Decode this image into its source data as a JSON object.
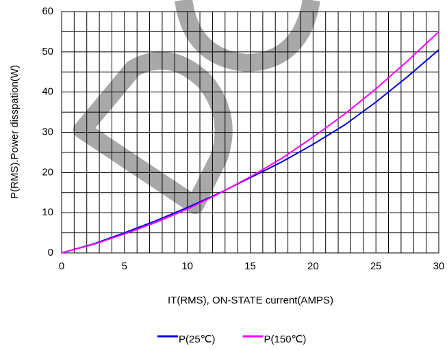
{
  "chart_data": {
    "type": "line",
    "x_label": "IT(RMS), ON-STATE current(AMPS)",
    "y_label": "P(RMS).Power disspation(W)",
    "xlim": [
      0,
      30
    ],
    "ylim": [
      0,
      60
    ],
    "xticks": [
      0,
      5,
      10,
      15,
      20,
      25,
      30
    ],
    "yticks": [
      0,
      10,
      20,
      30,
      40,
      50,
      60
    ],
    "minor_xticks": [
      1,
      2,
      3,
      4,
      6,
      7,
      8,
      9,
      11,
      12,
      13,
      14,
      16,
      17,
      18,
      19,
      21,
      22,
      23,
      24,
      26,
      27,
      28,
      29
    ],
    "minor_yticks": [
      5,
      15,
      25,
      35,
      45,
      55
    ],
    "grid": true,
    "legend": "bottom",
    "x": [
      0,
      2.5,
      5,
      7.5,
      10,
      12.5,
      15,
      17.5,
      20,
      22.5,
      25,
      27.5,
      30
    ],
    "series": [
      {
        "name": "P(25℃)",
        "color": "#0000e0",
        "values": [
          0,
          2.2,
          5,
          8,
          11.3,
          14.8,
          18.7,
          22.6,
          27,
          31.8,
          37.5,
          43.8,
          50.5
        ]
      },
      {
        "name": "P(150℃)",
        "color": "#ff00ff",
        "values": [
          0,
          2.1,
          4.7,
          7.6,
          10.9,
          14.7,
          18.9,
          23.5,
          28.8,
          34.5,
          40.8,
          47.7,
          55
        ]
      }
    ]
  }
}
